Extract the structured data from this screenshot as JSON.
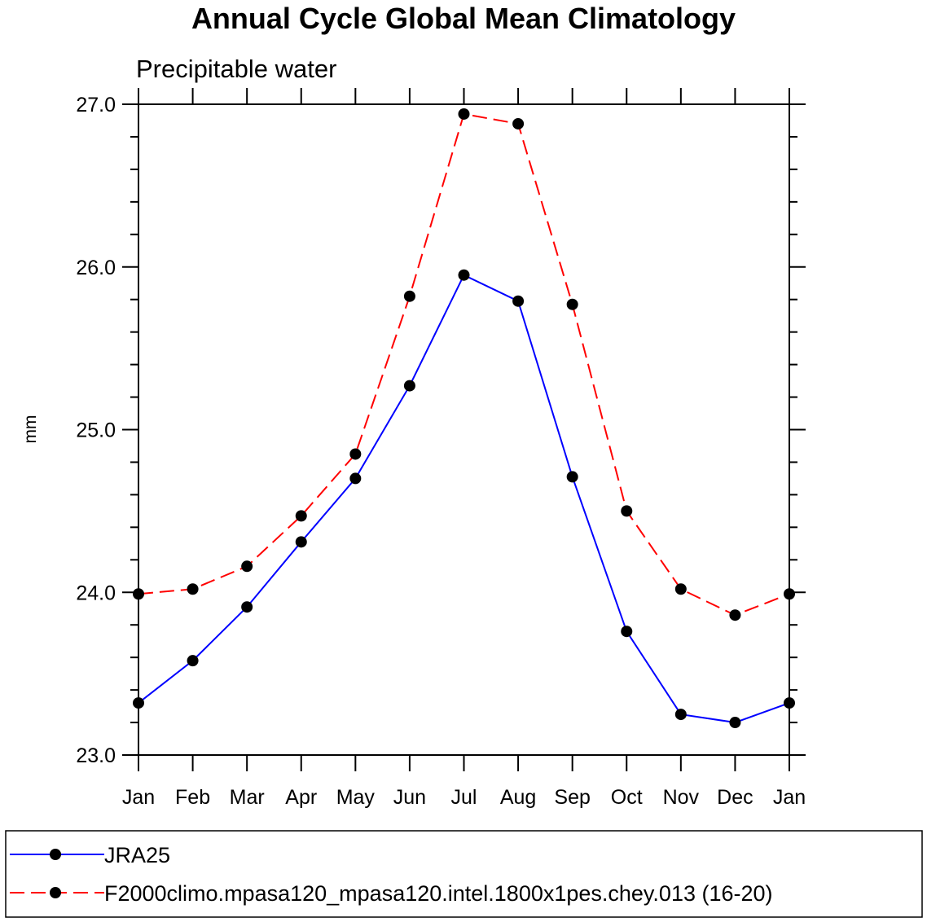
{
  "chart_data": {
    "type": "line",
    "title": "Annual Cycle Global Mean Climatology",
    "subtitle": "Precipitable water",
    "xlabel": "",
    "ylabel": "mm",
    "categories": [
      "Jan",
      "Feb",
      "Mar",
      "Apr",
      "May",
      "Jun",
      "Jul",
      "Aug",
      "Sep",
      "Oct",
      "Nov",
      "Dec",
      "Jan"
    ],
    "ylim": [
      23.0,
      27.0
    ],
    "yticks": [
      "23.0",
      "24.0",
      "25.0",
      "26.0",
      "27.0"
    ],
    "grid": false,
    "legend_position": "bottom",
    "series": [
      {
        "name": "JRA25",
        "color": "#0000ff",
        "line_style": "solid",
        "marker": "filled-circle",
        "values": [
          23.32,
          23.58,
          23.91,
          24.31,
          24.7,
          25.27,
          25.95,
          25.79,
          24.71,
          23.76,
          23.25,
          23.2,
          23.32
        ]
      },
      {
        "name": "F2000climo.mpasa120_mpasa120.intel.1800x1pes.chey.013 (16-20)",
        "color": "#ff0000",
        "line_style": "dashed",
        "marker": "filled-circle",
        "values": [
          23.99,
          24.02,
          24.16,
          24.47,
          24.85,
          25.82,
          26.94,
          26.88,
          25.77,
          24.5,
          24.02,
          23.86,
          23.99
        ]
      }
    ]
  }
}
